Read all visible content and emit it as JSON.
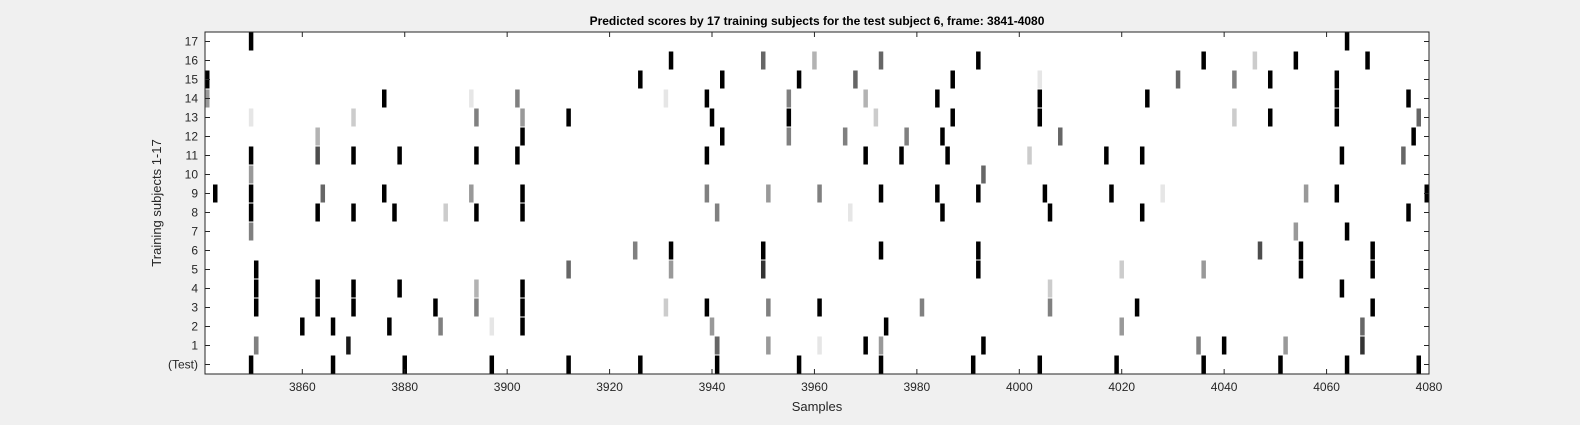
{
  "chart_data": {
    "type": "heatmap",
    "title": "Predicted scores by 17 training subjects for the test subject 6, frame: 3841-4080",
    "xlabel": "Samples",
    "ylabel": "Training subjects 1-17",
    "xlim": [
      3841,
      4080
    ],
    "x_ticks": [
      "3860",
      "3880",
      "3900",
      "3920",
      "3940",
      "3960",
      "3980",
      "4000",
      "4020",
      "4040",
      "4060",
      "4080"
    ],
    "x_tick_values": [
      3860,
      3880,
      3900,
      3920,
      3940,
      3960,
      3980,
      4000,
      4020,
      4040,
      4060,
      4080
    ],
    "rows": [
      "(Test)",
      "1",
      "2",
      "3",
      "4",
      "5",
      "6",
      "7",
      "8",
      "9",
      "10",
      "11",
      "12",
      "13",
      "14",
      "15",
      "16",
      "17"
    ],
    "colormap": "gray (0 = black, 1 = white)",
    "background": "#ffffff",
    "marks": [
      {
        "row": 0,
        "x": [
          3850,
          3866,
          3880,
          3897,
          3912,
          3926,
          3941,
          3957,
          3973,
          3991,
          4004,
          4019,
          4036,
          4051,
          4064,
          4078
        ],
        "v": 0
      },
      {
        "row": 1,
        "x": [
          3851,
          3941,
          3970,
          3993,
          4040
        ],
        "v": 0,
        "extra": [
          [
            3851,
            0.5
          ],
          [
            3869,
            0.1
          ],
          [
            3941,
            0.4
          ],
          [
            3951,
            0.6
          ],
          [
            3961,
            0.9
          ],
          [
            3973,
            0.6
          ],
          [
            4035,
            0.5
          ],
          [
            4052,
            0.6
          ],
          [
            4067,
            0.2
          ]
        ]
      },
      {
        "row": 2,
        "x": [
          3860,
          3866,
          3877,
          3903,
          3974
        ],
        "v": 0,
        "extra": [
          [
            3887,
            0.5
          ],
          [
            3897,
            0.9
          ],
          [
            3940,
            0.6
          ],
          [
            4020,
            0.6
          ],
          [
            4067,
            0.4
          ]
        ]
      },
      {
        "row": 3,
        "x": [
          3851,
          3863,
          3870,
          3886,
          3903,
          3939,
          3961,
          4023,
          4069
        ],
        "v": 0,
        "extra": [
          [
            3894,
            0.5
          ],
          [
            3931,
            0.8
          ],
          [
            3951,
            0.5
          ],
          [
            3981,
            0.5
          ],
          [
            4006,
            0.5
          ]
        ]
      },
      {
        "row": 4,
        "x": [
          3851,
          3863,
          3870,
          3879,
          3903,
          4063
        ],
        "v": 0,
        "extra": [
          [
            3894,
            0.7
          ],
          [
            4006,
            0.8
          ]
        ]
      },
      {
        "row": 5,
        "x": [
          3851,
          3992,
          4055,
          4069
        ],
        "v": 0,
        "extra": [
          [
            3912,
            0.4
          ],
          [
            3932,
            0.6
          ],
          [
            3950,
            0.2
          ],
          [
            4020,
            0.8
          ],
          [
            4036,
            0.6
          ]
        ]
      },
      {
        "row": 6,
        "x": [
          3932,
          3950,
          3973,
          3992,
          4055,
          4069
        ],
        "v": 0,
        "extra": [
          [
            3925,
            0.5
          ],
          [
            4047,
            0.3
          ]
        ]
      },
      {
        "row": 7,
        "x": [
          4064
        ],
        "v": 0,
        "extra": [
          [
            3850,
            0.5
          ],
          [
            4054,
            0.6
          ]
        ]
      },
      {
        "row": 8,
        "x": [
          3850,
          3863,
          3870,
          3878,
          3894,
          3903,
          3985,
          4006,
          4024,
          4076
        ],
        "v": 0,
        "extra": [
          [
            3888,
            0.8
          ],
          [
            3941,
            0.5
          ],
          [
            3967,
            0.9
          ]
        ]
      },
      {
        "row": 9,
        "x": [
          3843,
          3850,
          3876,
          3903,
          3973,
          3984,
          3992,
          4005,
          4018,
          4062,
          4080
        ],
        "v": 0,
        "extra": [
          [
            3864,
            0.4
          ],
          [
            3893,
            0.6
          ],
          [
            3939,
            0.5
          ],
          [
            3951,
            0.6
          ],
          [
            3961,
            0.5
          ],
          [
            4028,
            0.9
          ],
          [
            4056,
            0.6
          ]
        ]
      },
      {
        "row": 10,
        "x": [],
        "v": 0,
        "extra": [
          [
            3850,
            0.6
          ],
          [
            3993,
            0.4
          ]
        ]
      },
      {
        "row": 11,
        "x": [
          3850,
          3870,
          3879,
          3894,
          3902,
          3939,
          3970,
          3977,
          3986,
          4017,
          4024,
          4063
        ],
        "v": 0,
        "extra": [
          [
            3863,
            0.3
          ],
          [
            4002,
            0.8
          ],
          [
            4075,
            0.4
          ]
        ]
      },
      {
        "row": 12,
        "x": [
          3903,
          3942,
          3985,
          4077
        ],
        "v": 0,
        "extra": [
          [
            3863,
            0.7
          ],
          [
            3955,
            0.5
          ],
          [
            3966,
            0.5
          ],
          [
            3978,
            0.5
          ],
          [
            4008,
            0.4
          ]
        ]
      },
      {
        "row": 13,
        "x": [
          3912,
          3940,
          3955,
          3987,
          4004,
          4049,
          4062
        ],
        "v": 0,
        "extra": [
          [
            3850,
            0.9
          ],
          [
            3870,
            0.8
          ],
          [
            3894,
            0.5
          ],
          [
            3903,
            0.6
          ],
          [
            3972,
            0.8
          ],
          [
            4042,
            0.8
          ],
          [
            4078,
            0.4
          ]
        ]
      },
      {
        "row": 14,
        "x": [
          3876,
          3939,
          3984,
          4004,
          4025,
          4062,
          4076
        ],
        "v": 0,
        "extra": [
          [
            3841,
            0.6
          ],
          [
            3893,
            0.9
          ],
          [
            3902,
            0.5
          ],
          [
            3931,
            0.9
          ],
          [
            3955,
            0.5
          ],
          [
            3970,
            0.7
          ]
        ]
      },
      {
        "row": 15,
        "x": [
          3841,
          3926,
          3942,
          3957,
          3987,
          4049,
          4062
        ],
        "v": 0,
        "extra": [
          [
            3968,
            0.4
          ],
          [
            4004,
            0.9
          ],
          [
            4031,
            0.4
          ],
          [
            4042,
            0.5
          ]
        ]
      },
      {
        "row": 16,
        "x": [
          3932,
          3992,
          4036,
          4054,
          4068
        ],
        "v": 0,
        "extra": [
          [
            3950,
            0.4
          ],
          [
            3960,
            0.7
          ],
          [
            3973,
            0.4
          ],
          [
            4046,
            0.8
          ]
        ]
      },
      {
        "row": 17,
        "x": [
          3850,
          4064
        ],
        "v": 0
      }
    ]
  }
}
